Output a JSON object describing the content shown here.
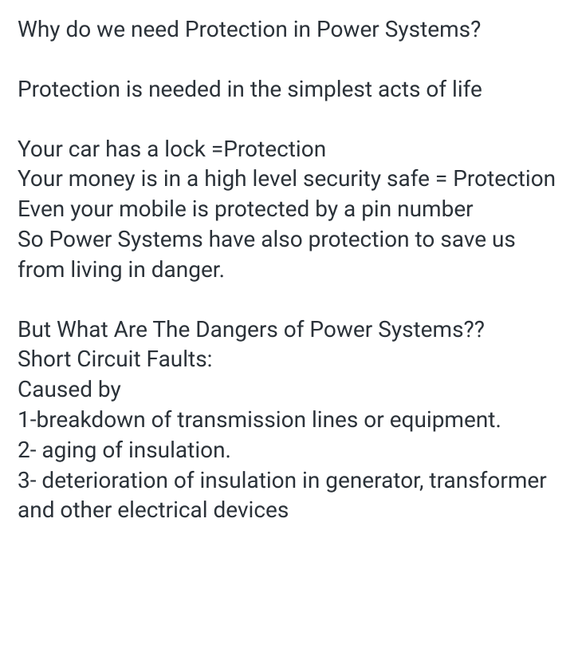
{
  "text": {
    "color": "#2b3239",
    "background": "#ffffff",
    "fontsize": 28,
    "lineheight": 1.35,
    "fontfamily": "sans-serif",
    "p1": "Why do we need Protection in Power Systems?",
    "p2": "Protection is needed in the simplest acts of life",
    "p3a": "Your car has a lock =Protection",
    "p3b": "Your money is in a high level security safe = Protection",
    "p3c": "Even your mobile is protected by a pin number",
    "p3d": "So Power Systems have also protection to save us from living in danger.",
    "p4a": "But What Are The Dangers of Power Systems??",
    "p4b": "Short Circuit Faults:",
    "p4c": "Caused by",
    "p4d": "1-breakdown of transmission lines or equipment.",
    "p4e": "2- aging of insulation.",
    "p4f": "3- deterioration of insulation in generator, transformer and other electrical devices"
  }
}
